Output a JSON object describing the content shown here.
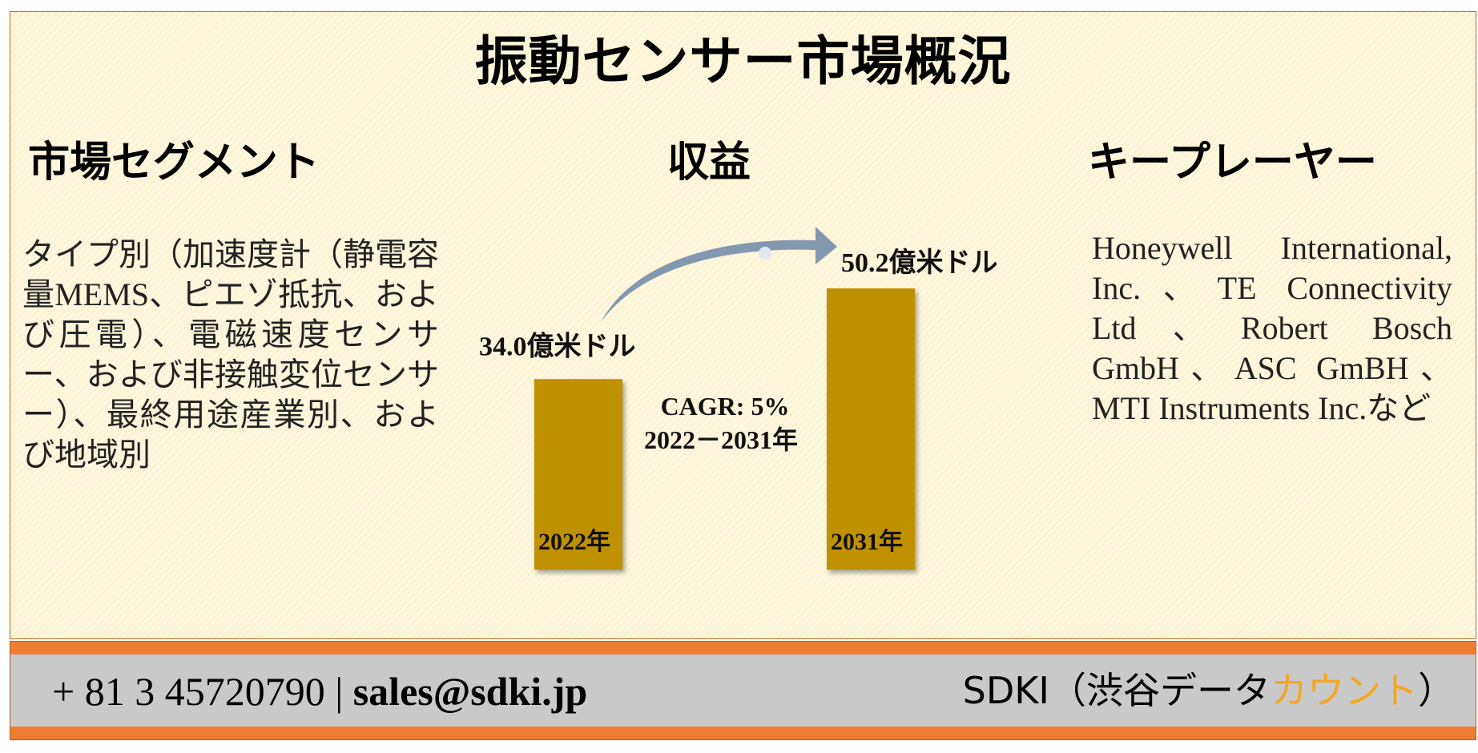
{
  "title": "振動センサー市場概況",
  "segments": {
    "heading": "市場セグメント",
    "text": "タイプ別（加速度計（静電容量MEMS、ピエゾ抵抗、および圧電）、電磁速度センサー、および非接触変位センサー）、最終用途産業別、および地域別"
  },
  "revenue": {
    "heading": "収益"
  },
  "key_players": {
    "heading": "キープレーヤー",
    "text": "Honeywell International, Inc.、TE Connectivity Ltd、Robert Bosch GmbH、ASC GmBH、MTI Instruments Inc.など"
  },
  "chart_data": {
    "type": "bar",
    "categories": [
      "2022年",
      "2031年"
    ],
    "values": [
      34.0,
      50.2
    ],
    "value_labels": [
      "34.0億米ドル",
      "50.2億米ドル"
    ],
    "unit": "億米ドル",
    "annotation": {
      "line1": "CAGR: 5%",
      "line2": "2022－2031年"
    },
    "bar_color": "#bf9000",
    "arrow_color": "#8497b0"
  },
  "footer": {
    "phone": "+ 81 3 45720790",
    "separator": "|",
    "email": "sales@sdki.jp",
    "brand_prefix": "SDKI（渋谷データ",
    "brand_accent": "カウント",
    "brand_suffix": "）",
    "background_color": "#ed7d31",
    "band_color": "#c9c9c9",
    "accent_color": "#f5a623"
  }
}
